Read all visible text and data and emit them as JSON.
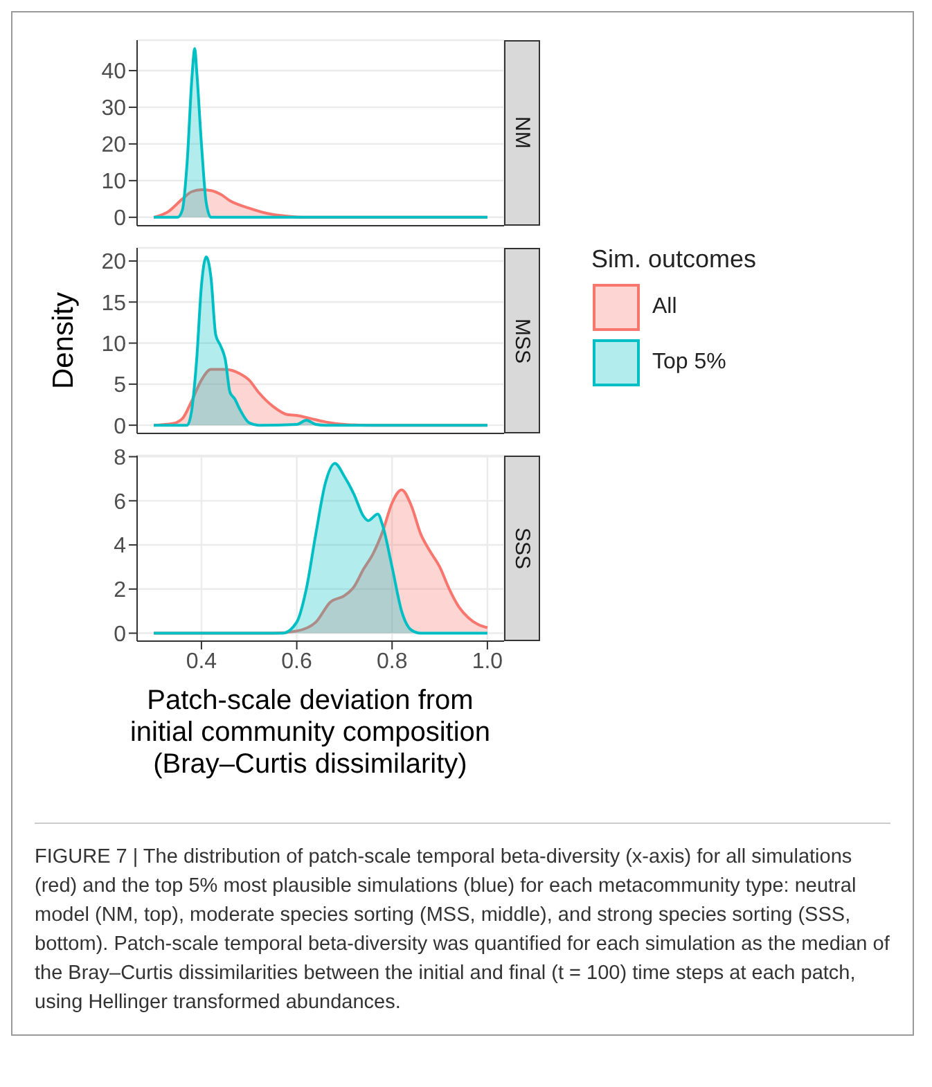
{
  "chart_data": [
    {
      "type": "area",
      "title": "NM",
      "xlim": [
        0.265,
        1.035
      ],
      "ylim": [
        -2.3,
        48.3
      ],
      "yticks": [
        0,
        10,
        20,
        30,
        40
      ],
      "grid": true,
      "tick_labels": "y",
      "series": [
        {
          "color": "#f8766d",
          "x": [
            0.3,
            0.33,
            0.36,
            0.38,
            0.4,
            0.42,
            0.44,
            0.46,
            0.5,
            0.54,
            0.58,
            0.62,
            0.7,
            0.8,
            0.9,
            1.0
          ],
          "values": [
            0,
            1.5,
            5,
            7,
            7.5,
            7.3,
            6.3,
            4.5,
            2.5,
            1,
            0.3,
            0,
            0,
            0,
            0,
            0
          ]
        },
        {
          "color": "#00bfc4",
          "x": [
            0.3,
            0.35,
            0.36,
            0.37,
            0.38,
            0.386,
            0.39,
            0.4,
            0.41,
            0.42,
            0.5,
            0.6,
            0.7,
            0.8,
            0.9,
            1.0
          ],
          "values": [
            0,
            0,
            2,
            15,
            38,
            46,
            40,
            20,
            4,
            0,
            0,
            0,
            0,
            0,
            0,
            0
          ]
        }
      ]
    },
    {
      "type": "area",
      "title": "MSS",
      "ylabel": "Density",
      "xlim": [
        0.265,
        1.035
      ],
      "ylim": [
        -1,
        21.6
      ],
      "yticks": [
        0,
        5,
        10,
        15,
        20
      ],
      "grid": true,
      "tick_labels": "y",
      "legend": "right",
      "legend_title": "Sim. outcomes",
      "series": [
        {
          "name": "All",
          "color": "#f8766d",
          "x": [
            0.3,
            0.34,
            0.36,
            0.38,
            0.4,
            0.42,
            0.45,
            0.48,
            0.5,
            0.52,
            0.55,
            0.58,
            0.6,
            0.63,
            0.66,
            0.7,
            0.75,
            0.8,
            0.9,
            1.0
          ],
          "values": [
            0,
            0.2,
            0.8,
            3,
            5.5,
            6.8,
            6.8,
            6.3,
            5.5,
            4,
            2.3,
            1.3,
            1.2,
            0.8,
            0.4,
            0.1,
            0,
            0,
            0,
            0
          ]
        },
        {
          "name": "Top 5%",
          "color": "#00bfc4",
          "x": [
            0.3,
            0.37,
            0.38,
            0.39,
            0.4,
            0.41,
            0.42,
            0.43,
            0.44,
            0.45,
            0.46,
            0.47,
            0.48,
            0.5,
            0.52,
            0.6,
            0.62,
            0.64,
            0.66,
            0.8,
            1.0
          ],
          "values": [
            0,
            0,
            2,
            8,
            17,
            20.5,
            18,
            11,
            9.7,
            8,
            4,
            3.2,
            2,
            0.3,
            0,
            0.1,
            0.6,
            0.1,
            0,
            0,
            0
          ]
        }
      ]
    },
    {
      "type": "area",
      "title": "SSS",
      "xlabel": "Patch-scale deviation from\ninitial community composition\n(Bray–Curtis dissimilarity)",
      "xlim": [
        0.265,
        1.035
      ],
      "xticks": [
        0.4,
        0.6,
        0.8,
        {
          "value": 1,
          "label": "1.0"
        }
      ],
      "ylim": [
        -0.36,
        8.05
      ],
      "yticks": [
        0,
        2,
        4,
        6,
        8
      ],
      "grid": true,
      "annotations": [
        "FIGURE 7 | The distribution of patch-scale temporal beta-diversity (x-axis) for all simulations (red) and the top 5% most plausible simulations (blue) for each metacommunity type: neutral model (NM, top), moderate species sorting (MSS, middle), and strong species sorting (SSS, bottom). Patch-scale temporal beta-diversity was quantified for each simulation as the median of the Bray–Curtis dissimilarities between the initial and final (t = 100) time steps at each patch, using Hellinger transformed abundances."
      ],
      "series": [
        {
          "color": "#f8766d",
          "x": [
            0.3,
            0.55,
            0.6,
            0.64,
            0.67,
            0.7,
            0.72,
            0.74,
            0.76,
            0.78,
            0.8,
            0.82,
            0.84,
            0.86,
            0.88,
            0.9,
            0.92,
            0.94,
            0.96,
            0.98,
            1.0
          ],
          "values": [
            0,
            0,
            0.1,
            0.5,
            1.4,
            1.7,
            2.1,
            2.9,
            3.6,
            4.6,
            5.9,
            6.5,
            5.8,
            4.5,
            3.7,
            3,
            2,
            1.2,
            0.7,
            0.4,
            0.25
          ]
        },
        {
          "color": "#00bfc4",
          "x": [
            0.3,
            0.57,
            0.6,
            0.62,
            0.64,
            0.66,
            0.68,
            0.7,
            0.72,
            0.74,
            0.75,
            0.77,
            0.78,
            0.8,
            0.82,
            0.84,
            0.86,
            1.0
          ],
          "values": [
            0,
            0,
            0.5,
            2,
            4.5,
            6.8,
            7.7,
            7.1,
            6.3,
            5.3,
            5.1,
            5.4,
            4.9,
            3,
            1,
            0.15,
            0,
            0
          ]
        }
      ]
    }
  ]
}
